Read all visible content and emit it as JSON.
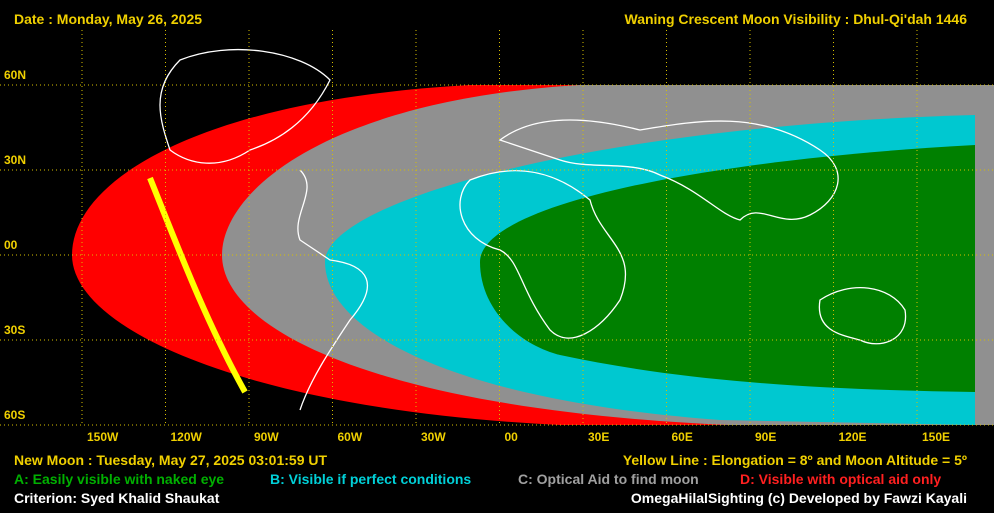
{
  "header": {
    "date": "Date : Monday, May 26, 2025",
    "title": "Waning Crescent Moon Visibility : Dhul-Qi'dah 1446"
  },
  "lat_labels": [
    "60N",
    "30N",
    "00",
    "30S",
    "60S"
  ],
  "lon_labels": [
    "150W",
    "120W",
    "90W",
    "60W",
    "30W",
    "00",
    "30E",
    "60E",
    "90E",
    "120E",
    "150E"
  ],
  "footer": {
    "new_moon": "New Moon : Tuesday, May 27, 2025  03:01:59  UT",
    "yellow_line": "Yellow Line : Elongation = 8º  and Moon Altitude = 5º",
    "legend": [
      {
        "text": "A: Easily visible with naked eye",
        "color": "#00b000"
      },
      {
        "text": "B: Visible if perfect conditions",
        "color": "#00d0d8"
      },
      {
        "text": "C: Optical Aid to find moon",
        "color": "#a0a0a0"
      },
      {
        "text": "D: Visible with optical aid only",
        "color": "#ff2020"
      }
    ],
    "criterion": "Criterion: Syed Khalid Shaukat",
    "credit": "OmegaHilalSighting  (c) Developed by Fawzi Kayali"
  }
}
